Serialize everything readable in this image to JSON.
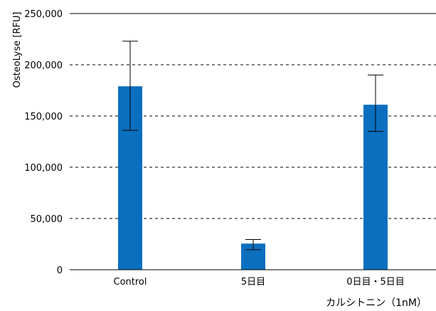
{
  "chart_data": {
    "type": "bar",
    "categories": [
      "Control",
      "5日目",
      "0日目・5日目"
    ],
    "values": [
      179000,
      25500,
      161000
    ],
    "error_bars": [
      {
        "low": 136000,
        "high": 223000
      },
      {
        "low": 19500,
        "high": 29500
      },
      {
        "low": 135000,
        "high": 190000
      }
    ],
    "ylabel": "OsteoLyse [RFU]",
    "xlabel": "カルシトニン（1nM）",
    "ylim": [
      0,
      250000
    ],
    "yticks": [
      0,
      50000,
      100000,
      150000,
      200000,
      250000
    ],
    "ytick_labels": [
      "0",
      "50,000",
      "100,000",
      "150,000",
      "200,000",
      "250,000"
    ],
    "grid": "dashed horizontal",
    "bar_color": "#0a6fbf",
    "error_color": "#000000"
  }
}
